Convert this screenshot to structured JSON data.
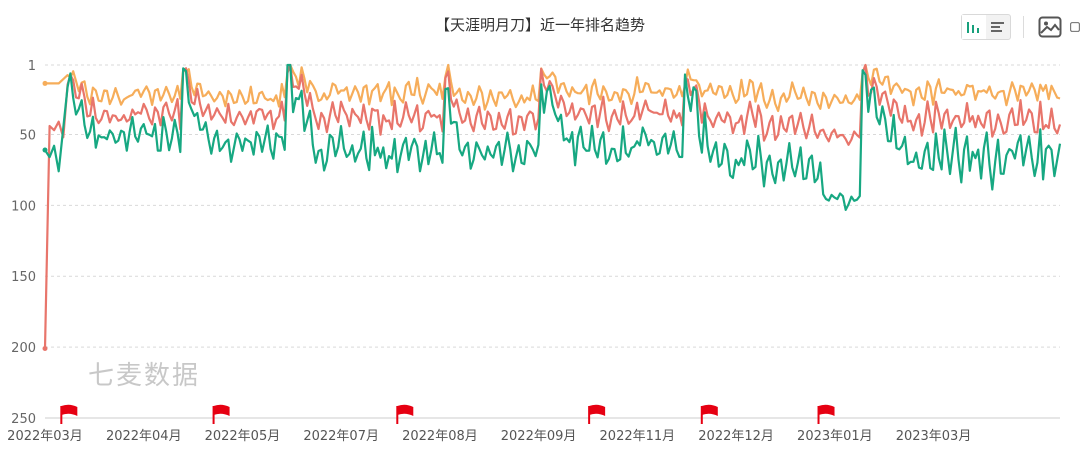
{
  "title": "【天涯明月刀】近一年排名趋势",
  "watermark": "七麦数据",
  "toolbar": {
    "icons": [
      "bar-chart-icon",
      "list-icon",
      "image-icon",
      "more-icon"
    ]
  },
  "colors": {
    "series": [
      "#f6ad5a",
      "#e8756b",
      "#17a882"
    ],
    "grid": "#d9d9d9",
    "axis": "#cccccc",
    "flag": "#e60012"
  },
  "chart_data": {
    "type": "line",
    "title": "【天涯明月刀】近一年排名趋势",
    "y_inverted": true,
    "ylim": [
      1,
      250
    ],
    "y_ticks": [
      1,
      50,
      100,
      150,
      200,
      250
    ],
    "grid": true,
    "x_labels": [
      "2022年03月",
      "2022年04月",
      "2022年05月",
      "2022年07月",
      "2022年08月",
      "2022年09月",
      "2022年11月",
      "2022年12月",
      "2023年01月",
      "2023年03月"
    ],
    "x_label_fracs": [
      0,
      0.0973,
      0.1945,
      0.2918,
      0.3891,
      0.4863,
      0.5836,
      0.6809,
      0.7782,
      0.8754
    ],
    "event_flag_fracs": [
      0.022,
      0.172,
      0.353,
      0.542,
      0.653,
      0.768
    ],
    "series": [
      {
        "color": "#f6ad5a",
        "start_values": [
          14,
          14,
          14,
          14
        ],
        "segments": [
          {
            "start": 0.02,
            "end": 0.135,
            "base": 22,
            "peak": 2,
            "noise": 9
          },
          {
            "start": 0.135,
            "end": 0.238,
            "base": 24,
            "peak": 2,
            "noise": 9
          },
          {
            "start": 0.238,
            "end": 0.392,
            "base": 20,
            "peak": 4,
            "noise": 10
          },
          {
            "start": 0.392,
            "end": 0.488,
            "base": 24,
            "peak": 2,
            "noise": 9
          },
          {
            "start": 0.488,
            "end": 0.63,
            "base": 20,
            "peak": 5,
            "noise": 9
          },
          {
            "start": 0.63,
            "end": 0.765,
            "base": 22,
            "peak": 8,
            "noise": 11
          },
          {
            "start": 0.765,
            "end": 0.805,
            "base": 25,
            "peak": 24,
            "noise": 6
          },
          {
            "start": 0.805,
            "end": 1.0,
            "base": 20,
            "peak": 2,
            "noise": 10
          }
        ]
      },
      {
        "color": "#e8756b",
        "start_values": [
          201,
          44,
          47,
          41,
          52
        ],
        "segments": [
          {
            "start": 0.02,
            "end": 0.135,
            "base": 35,
            "peak": 3,
            "noise": 11
          },
          {
            "start": 0.135,
            "end": 0.238,
            "base": 37,
            "peak": 4,
            "noise": 11
          },
          {
            "start": 0.238,
            "end": 0.392,
            "base": 38,
            "peak": 6,
            "noise": 12
          },
          {
            "start": 0.392,
            "end": 0.488,
            "base": 40,
            "peak": 5,
            "noise": 11
          },
          {
            "start": 0.488,
            "end": 0.63,
            "base": 36,
            "peak": 8,
            "noise": 11
          },
          {
            "start": 0.63,
            "end": 0.765,
            "base": 42,
            "peak": 12,
            "noise": 13
          },
          {
            "start": 0.765,
            "end": 0.805,
            "base": 50,
            "peak": 50,
            "noise": 8
          },
          {
            "start": 0.805,
            "end": 1.0,
            "base": 40,
            "peak": 5,
            "noise": 14
          }
        ]
      },
      {
        "color": "#17a882",
        "start_values": [
          61,
          66,
          58,
          76
        ],
        "segments": [
          {
            "start": 0.02,
            "end": 0.135,
            "base": 50,
            "peak": 6,
            "noise": 14
          },
          {
            "start": 0.135,
            "end": 0.238,
            "base": 55,
            "peak": 8,
            "noise": 16
          },
          {
            "start": 0.238,
            "end": 0.392,
            "base": 62,
            "peak": 10,
            "noise": 18
          },
          {
            "start": 0.392,
            "end": 0.488,
            "base": 62,
            "peak": 10,
            "noise": 14
          },
          {
            "start": 0.488,
            "end": 0.63,
            "base": 58,
            "peak": 12,
            "noise": 16
          },
          {
            "start": 0.63,
            "end": 0.765,
            "base": 70,
            "peak": 15,
            "noise": 18
          },
          {
            "start": 0.765,
            "end": 0.805,
            "base": 95,
            "peak": 90,
            "noise": 10
          },
          {
            "start": 0.805,
            "end": 1.0,
            "base": 65,
            "peak": 10,
            "noise": 20
          }
        ]
      }
    ]
  }
}
